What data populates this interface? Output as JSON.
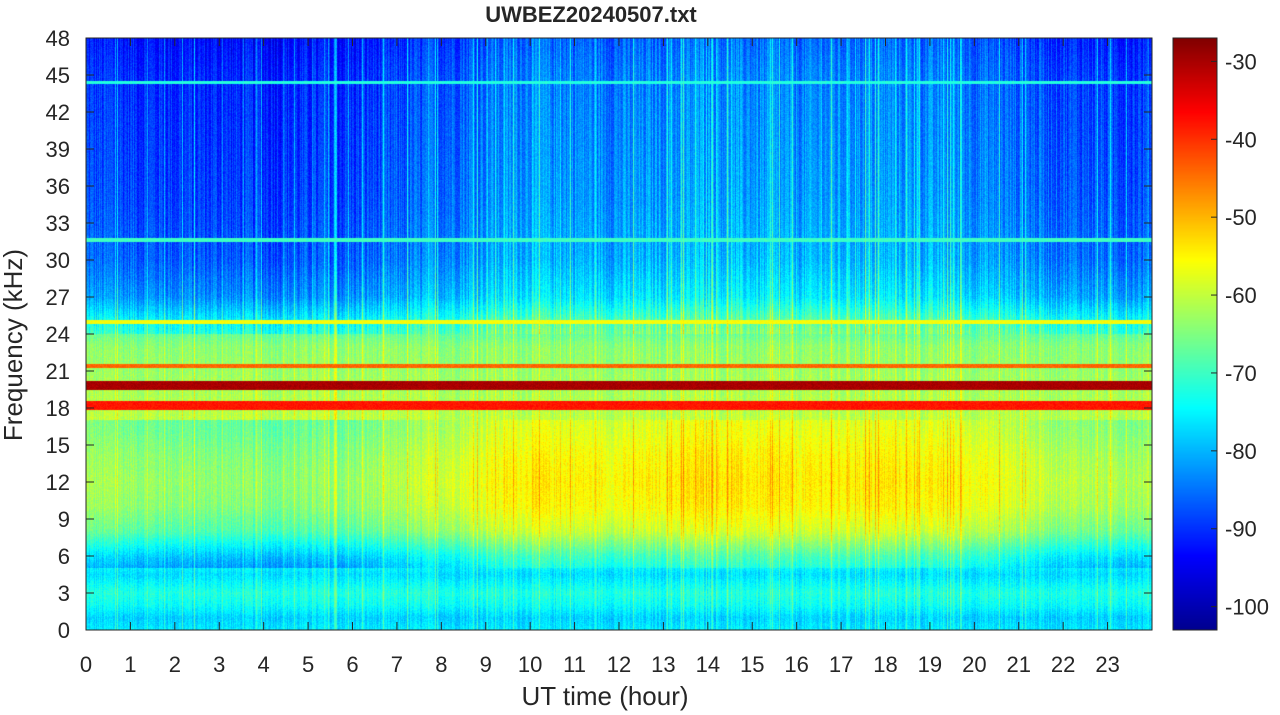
{
  "chart_data": {
    "type": "heatmap",
    "title": "UWBEZ20240507.txt",
    "xlabel": "UT time (hour)",
    "ylabel": "Frequency (kHz)",
    "xlim": [
      0,
      24
    ],
    "ylim": [
      0,
      48
    ],
    "x_ticks": [
      0,
      1,
      2,
      3,
      4,
      5,
      6,
      7,
      8,
      9,
      10,
      11,
      12,
      13,
      14,
      15,
      16,
      17,
      18,
      19,
      20,
      21,
      22,
      23
    ],
    "y_ticks": [
      0,
      3,
      6,
      9,
      12,
      15,
      18,
      21,
      24,
      27,
      30,
      33,
      36,
      39,
      42,
      45,
      48
    ],
    "colorbar": {
      "colormap": "jet",
      "clim": [
        -103,
        -27
      ],
      "ticks": [
        -100,
        -90,
        -80,
        -70,
        -60,
        -50,
        -40,
        -30
      ]
    },
    "colors": {
      "jet": [
        "#00008f",
        "#0000ff",
        "#0080ff",
        "#00ffff",
        "#80ff80",
        "#ffff00",
        "#ff8000",
        "#ff0000",
        "#800000"
      ]
    },
    "background_profile": {
      "frequency_khz": [
        0,
        1,
        2,
        3,
        4.5,
        6,
        8,
        10,
        12,
        14,
        16,
        18,
        21,
        23,
        25,
        27,
        30,
        35,
        40,
        45,
        48
      ],
      "level_db": [
        -76,
        -78,
        -74,
        -72,
        -77,
        -72,
        -62,
        -58,
        -57,
        -58,
        -60,
        -61,
        -63,
        -64,
        -70,
        -78,
        -82,
        -84,
        -85,
        -86,
        -88
      ]
    },
    "lines": [
      {
        "frequency_khz": 19.8,
        "level_db": -30
      },
      {
        "frequency_khz": 18.2,
        "level_db": -38
      },
      {
        "frequency_khz": 21.4,
        "level_db": -44
      },
      {
        "frequency_khz": 25.0,
        "level_db": -56
      },
      {
        "frequency_khz": 44.4,
        "level_db": -72
      },
      {
        "frequency_khz": 31.6,
        "level_db": -70
      }
    ],
    "activity_profile": {
      "hour": [
        0,
        2,
        4,
        6,
        8,
        10,
        12,
        14,
        16,
        18,
        20,
        22,
        24
      ],
      "level_db": [
        -6,
        -8,
        -9,
        -8,
        -2,
        4,
        2,
        5,
        3,
        4,
        2,
        -4,
        -6
      ]
    }
  }
}
